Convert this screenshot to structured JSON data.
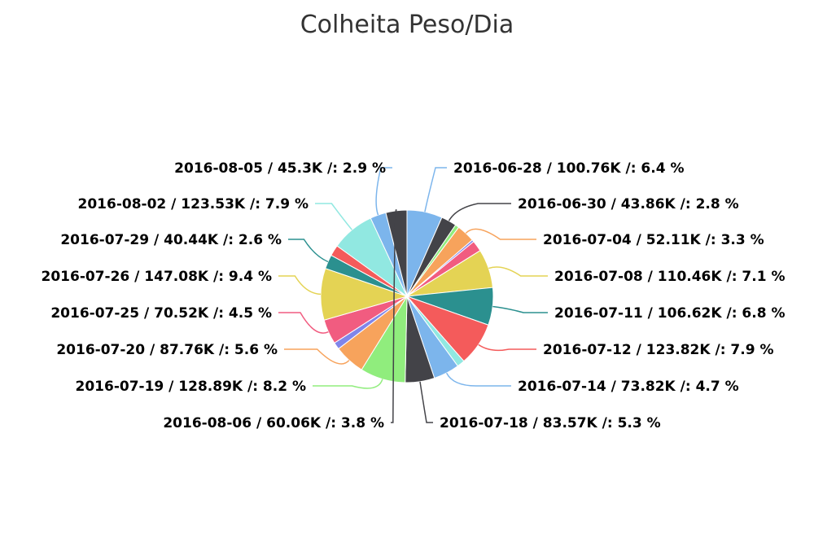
{
  "chart_data": {
    "type": "pie",
    "title": "Colheita Peso/Dia",
    "slices": [
      {
        "label": "2016-06-28 / 100.76K /: 6.4 %",
        "value": 100.76,
        "percent": 6.4,
        "color": "#7cb5ec"
      },
      {
        "label": "2016-06-30 / 43.86K /: 2.8 %",
        "value": 43.86,
        "percent": 2.8,
        "color": "#434348"
      },
      {
        "label": "",
        "value": 11.0,
        "percent": 0.7,
        "color": "#90ed7d"
      },
      {
        "label": "2016-07-04 / 52.11K /: 3.3 %",
        "value": 52.11,
        "percent": 3.3,
        "color": "#f7a35c"
      },
      {
        "label": "",
        "value": 6.0,
        "percent": 0.4,
        "color": "#8085e9"
      },
      {
        "label": "",
        "value": 31.0,
        "percent": 2.0,
        "color": "#f15c80"
      },
      {
        "label": "2016-07-08 / 110.46K /: 7.1 %",
        "value": 110.46,
        "percent": 7.1,
        "color": "#e4d354"
      },
      {
        "label": "2016-07-11 / 106.62K /: 6.8 %",
        "value": 106.62,
        "percent": 6.8,
        "color": "#2b908f"
      },
      {
        "label": "2016-07-12 / 123.82K /: 7.9 %",
        "value": 123.82,
        "percent": 7.9,
        "color": "#f45b5b"
      },
      {
        "label": "",
        "value": 22.0,
        "percent": 1.4,
        "color": "#91e8e1"
      },
      {
        "label": "2016-07-14 / 73.82K /: 4.7 %",
        "value": 73.82,
        "percent": 4.7,
        "color": "#7cb5ec"
      },
      {
        "label": "2016-07-18 / 83.57K /: 5.3 %",
        "value": 83.57,
        "percent": 5.3,
        "color": "#434348"
      },
      {
        "label": "2016-07-19 / 128.89K /: 8.2 %",
        "value": 128.89,
        "percent": 8.2,
        "color": "#90ed7d"
      },
      {
        "label": "2016-07-20 / 87.76K /: 5.6 %",
        "value": 87.76,
        "percent": 5.6,
        "color": "#f7a35c"
      },
      {
        "label": "",
        "value": 20.0,
        "percent": 1.3,
        "color": "#8085e9"
      },
      {
        "label": "2016-07-25 / 70.52K /: 4.5 %",
        "value": 70.52,
        "percent": 4.5,
        "color": "#f15c80"
      },
      {
        "label": "2016-07-26 / 147.08K /: 9.4 %",
        "value": 147.08,
        "percent": 9.4,
        "color": "#e4d354"
      },
      {
        "label": "2016-07-29 / 40.44K /: 2.6 %",
        "value": 40.44,
        "percent": 2.6,
        "color": "#2b908f"
      },
      {
        "label": "",
        "value": 31.0,
        "percent": 2.0,
        "color": "#f45b5b"
      },
      {
        "label": "2016-08-02 / 123.53K /: 7.9 %",
        "value": 123.53,
        "percent": 7.9,
        "color": "#91e8e1"
      },
      {
        "label": "2016-08-05 / 45.3K /: 2.9 %",
        "value": 45.3,
        "percent": 2.9,
        "color": "#7cb5ec"
      },
      {
        "label": "2016-08-06 / 60.06K /: 3.8 %",
        "value": 60.06,
        "percent": 3.8,
        "color": "#434348"
      }
    ]
  }
}
